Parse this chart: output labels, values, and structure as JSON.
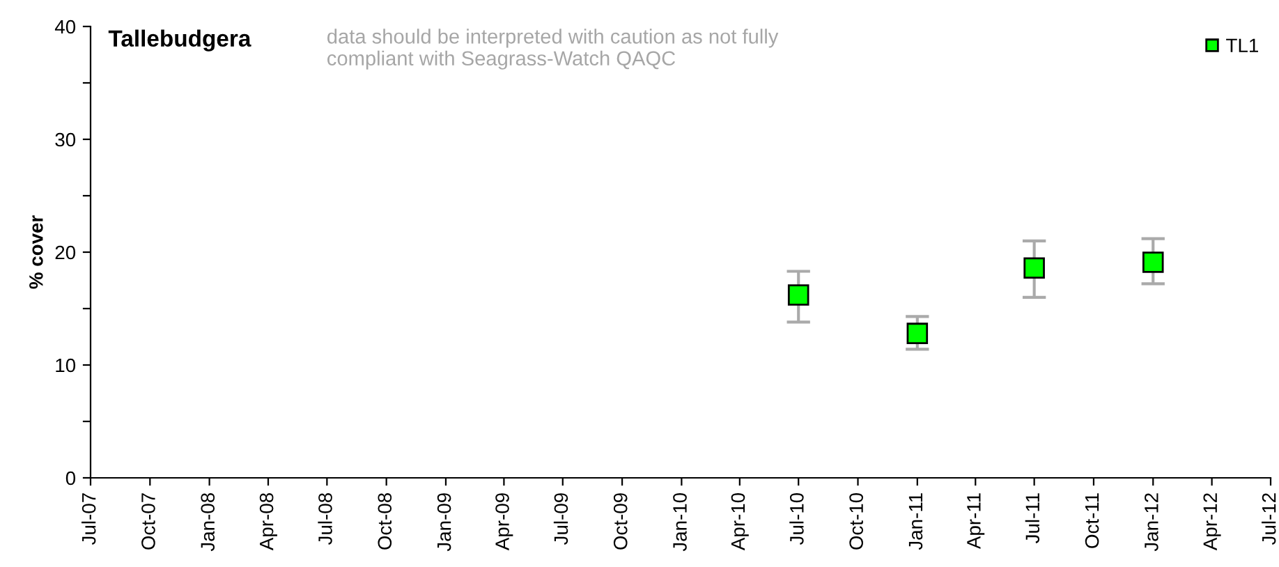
{
  "chart_data": {
    "type": "scatter",
    "title": "Tallebudgera",
    "ylabel": "% cover",
    "annotations": [
      "data should be interpreted with caution as not fully\ncompliant with Seagrass-Watch QAQC"
    ],
    "x": [
      "2010-07",
      "2011-01",
      "2011-07",
      "2012-01"
    ],
    "series": [
      {
        "name": "TL1",
        "color": "#00ff00",
        "values": [
          16.2,
          12.8,
          18.6,
          19.1
        ],
        "errors": [
          [
            13.8,
            18.3
          ],
          [
            11.4,
            14.3
          ],
          [
            16.0,
            21.0
          ],
          [
            17.2,
            21.2
          ]
        ]
      }
    ],
    "xlim": [
      "2007-07",
      "2012-07"
    ],
    "xticks": [
      {
        "value": "2007-07",
        "label": "Jul-07"
      },
      {
        "value": "2007-10",
        "label": "Oct-07"
      },
      {
        "value": "2008-01",
        "label": "Jan-08"
      },
      {
        "value": "2008-04",
        "label": "Apr-08"
      },
      {
        "value": "2008-07",
        "label": "Jul-08"
      },
      {
        "value": "2008-10",
        "label": "Oct-08"
      },
      {
        "value": "2009-01",
        "label": "Jan-09"
      },
      {
        "value": "2009-04",
        "label": "Apr-09"
      },
      {
        "value": "2009-07",
        "label": "Jul-09"
      },
      {
        "value": "2009-10",
        "label": "Oct-09"
      },
      {
        "value": "2010-01",
        "label": "Jan-10"
      },
      {
        "value": "2010-04",
        "label": "Apr-10"
      },
      {
        "value": "2010-07",
        "label": "Jul-10"
      },
      {
        "value": "2010-10",
        "label": "Oct-10"
      },
      {
        "value": "2011-01",
        "label": "Jan-11"
      },
      {
        "value": "2011-04",
        "label": "Apr-11"
      },
      {
        "value": "2011-07",
        "label": "Jul-11"
      },
      {
        "value": "2011-10",
        "label": "Oct-11"
      },
      {
        "value": "2012-01",
        "label": "Jan-12"
      },
      {
        "value": "2012-04",
        "label": "Apr-12"
      },
      {
        "value": "2012-07",
        "label": "Jul-12"
      }
    ],
    "ylim": [
      0,
      40
    ],
    "yticks": [
      0,
      {
        "value": 5,
        "label": null
      },
      10,
      {
        "value": 15,
        "label": null
      },
      20,
      {
        "value": 25,
        "label": null
      },
      30,
      {
        "value": 35,
        "label": null
      },
      40
    ],
    "marker": "square",
    "legend": "top right",
    "grid": false
  }
}
